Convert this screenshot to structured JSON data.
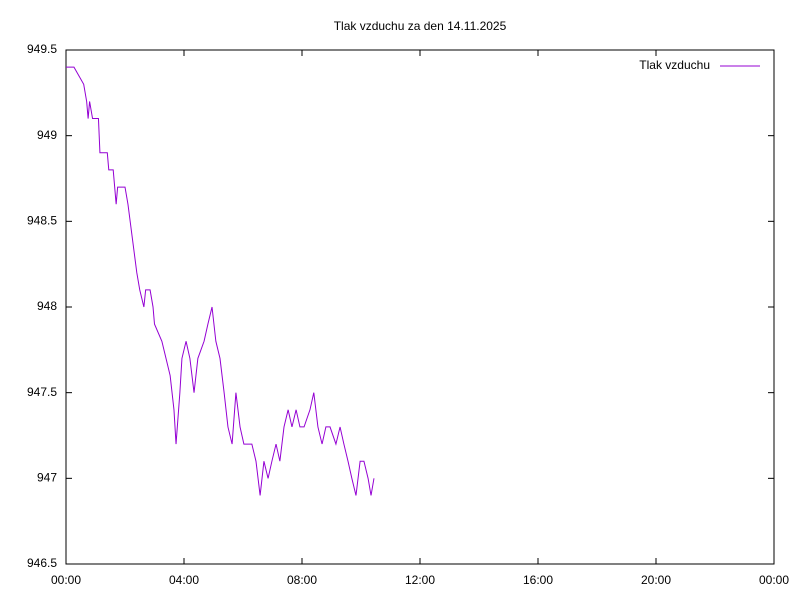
{
  "chart_data": {
    "type": "line",
    "title": "Tlak vzduchu za den 14.11.2025",
    "x": [
      0,
      0.27,
      0.6,
      0.7,
      0.75,
      0.8,
      0.9,
      1.1,
      1.15,
      1.4,
      1.45,
      1.6,
      1.7,
      1.75,
      2.0,
      2.1,
      2.25,
      2.4,
      2.5,
      2.64,
      2.7,
      2.85,
      2.95,
      3.0,
      3.25,
      3.39,
      3.53,
      3.66,
      3.73,
      3.86,
      3.93,
      4.07,
      4.2,
      4.34,
      4.47,
      4.68,
      4.81,
      4.95,
      5.08,
      5.22,
      5.36,
      5.49,
      5.63,
      5.76,
      5.9,
      6.03,
      6.3,
      6.44,
      6.58,
      6.71,
      6.85,
      6.98,
      7.12,
      7.25,
      7.39,
      7.53,
      7.66,
      7.8,
      7.93,
      8.07,
      8.27,
      8.4,
      8.54,
      8.68,
      8.81,
      8.95,
      9.15,
      9.29,
      9.42,
      9.56,
      9.69,
      9.83,
      9.97,
      10.1,
      10.24,
      10.34,
      10.44
    ],
    "series": [
      {
        "name": "Tlak vzduchu",
        "color": "#9400d3",
        "values": [
          949.4,
          949.4,
          949.3,
          949.2,
          949.1,
          949.2,
          949.1,
          949.1,
          948.9,
          948.9,
          948.8,
          948.8,
          948.6,
          948.7,
          948.7,
          948.6,
          948.4,
          948.2,
          948.1,
          948.0,
          948.1,
          948.1,
          948.0,
          947.9,
          947.8,
          947.7,
          947.6,
          947.4,
          947.2,
          947.5,
          947.7,
          947.8,
          947.7,
          947.5,
          947.7,
          947.8,
          947.9,
          948.0,
          947.8,
          947.7,
          947.5,
          947.3,
          947.2,
          947.5,
          947.3,
          947.2,
          947.2,
          947.1,
          946.9,
          947.1,
          947.0,
          947.1,
          947.2,
          947.1,
          947.3,
          947.4,
          947.3,
          947.4,
          947.3,
          947.3,
          947.4,
          947.5,
          947.3,
          947.2,
          947.3,
          947.3,
          947.2,
          947.3,
          947.2,
          947.1,
          947.0,
          946.9,
          947.1,
          947.1,
          947.0,
          946.9,
          947.0
        ]
      }
    ],
    "xlim": [
      0,
      24
    ],
    "xticks": [
      {
        "value": 0,
        "label": "00:00"
      },
      {
        "value": 4,
        "label": "04:00"
      },
      {
        "value": 8,
        "label": "08:00"
      },
      {
        "value": 12,
        "label": "12:00"
      },
      {
        "value": 16,
        "label": "16:00"
      },
      {
        "value": 20,
        "label": "20:00"
      },
      {
        "value": 24,
        "label": "00:00"
      }
    ],
    "ylim": [
      946.5,
      949.5
    ],
    "yticks": [
      946.5,
      947,
      947.5,
      948,
      948.5,
      949,
      949.5
    ],
    "grid": false,
    "legend": "top-right"
  }
}
